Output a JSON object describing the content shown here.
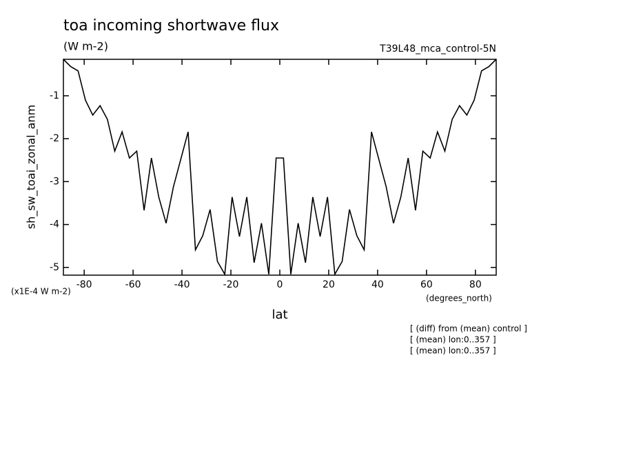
{
  "chart_data": {
    "type": "line",
    "title": "toa incoming shortwave flux",
    "subtitle": "(W m-2)",
    "dataset": "T39L48_mca_control-5N",
    "y_label": "sh_sw_toai_zonal_anm",
    "y_units": "(x1E-4 W m-2)",
    "x_label": "lat",
    "x_units": "(degrees_north)",
    "notes": [
      "[ (diff) from (mean) control ]",
      "[ (mean) lon:0..357 ]",
      "[ (mean) lon:0..357 ]"
    ],
    "x": [
      -88.5,
      -85.5,
      -82.5,
      -79.5,
      -76.5,
      -73.5,
      -70.5,
      -67.5,
      -64.5,
      -61.5,
      -58.5,
      -55.5,
      -52.5,
      -49.5,
      -46.5,
      -43.5,
      -40.5,
      -37.5,
      -34.5,
      -31.5,
      -28.5,
      -25.5,
      -22.5,
      -19.5,
      -16.5,
      -13.5,
      -10.5,
      -7.5,
      -4.5,
      -1.5,
      1.5,
      4.5,
      7.5,
      10.5,
      13.5,
      16.5,
      19.5,
      22.5,
      25.5,
      28.5,
      31.5,
      34.5,
      37.5,
      40.5,
      43.5,
      46.5,
      49.5,
      52.5,
      55.5,
      58.5,
      61.5,
      64.5,
      67.5,
      70.5,
      73.5,
      76.5,
      79.5,
      82.5,
      85.5,
      88.5
    ],
    "series": [
      {
        "name": "sh_sw_toai_zonal_anm",
        "color": "#000000",
        "values": [
          -0.15,
          -0.32,
          -0.42,
          -1.1,
          -1.45,
          -1.23,
          -1.55,
          -2.29,
          -1.84,
          -2.45,
          -2.29,
          -3.67,
          -2.45,
          -3.36,
          -3.97,
          -3.12,
          -2.48,
          -1.84,
          -4.59,
          -4.26,
          -3.65,
          -4.86,
          -5.16,
          -3.36,
          -4.28,
          -3.36,
          -4.89,
          -3.97,
          -5.16,
          -2.45,
          -2.45,
          -5.16,
          -3.97,
          -4.89,
          -3.36,
          -4.28,
          -3.36,
          -5.16,
          -4.86,
          -3.65,
          -4.26,
          -4.59,
          -1.84,
          -2.48,
          -3.12,
          -3.97,
          -3.36,
          -2.45,
          -3.67,
          -2.29,
          -2.45,
          -1.84,
          -2.29,
          -1.55,
          -1.23,
          -1.45,
          -1.1,
          -0.42,
          -0.32,
          -0.15
        ]
      }
    ],
    "xlim": [
      -88.5,
      88.5
    ],
    "xticks": [
      -80,
      -60,
      -40,
      -20,
      0,
      20,
      40,
      60,
      80
    ],
    "ylim": [
      -5.18,
      -0.15
    ],
    "yticks": [
      -1,
      -2,
      -3,
      -4,
      -5
    ]
  }
}
